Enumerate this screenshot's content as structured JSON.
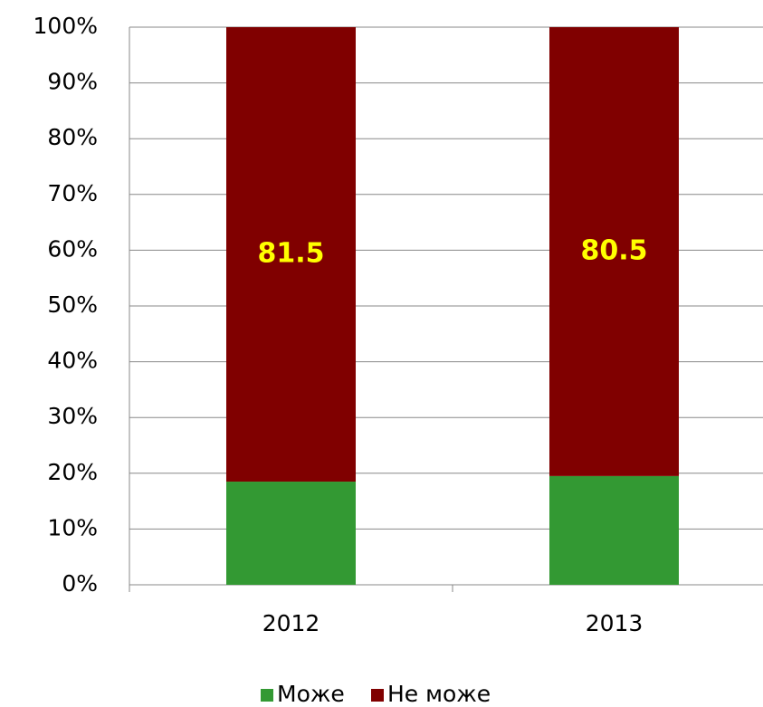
{
  "chart_data": {
    "type": "stacked_bar",
    "categories": [
      "2012",
      "2013"
    ],
    "series": [
      {
        "name": "Може",
        "color": "#339933",
        "values": [
          18.5,
          19.5
        ]
      },
      {
        "name": "Не може",
        "color": "#800000",
        "values": [
          81.5,
          80.5
        ]
      }
    ],
    "ylim": [
      0,
      100
    ],
    "yticks": [
      {
        "value": 0,
        "label": "0%"
      },
      {
        "value": 10,
        "label": "10%"
      },
      {
        "value": 20,
        "label": "20%"
      },
      {
        "value": 30,
        "label": "30%"
      },
      {
        "value": 40,
        "label": "40%"
      },
      {
        "value": 50,
        "label": "50%"
      },
      {
        "value": 60,
        "label": "60%"
      },
      {
        "value": 70,
        "label": "70%"
      },
      {
        "value": 80,
        "label": "80%"
      },
      {
        "value": 90,
        "label": "90%"
      },
      {
        "value": 100,
        "label": "100%"
      }
    ],
    "grid": true,
    "legend": "bottom"
  }
}
